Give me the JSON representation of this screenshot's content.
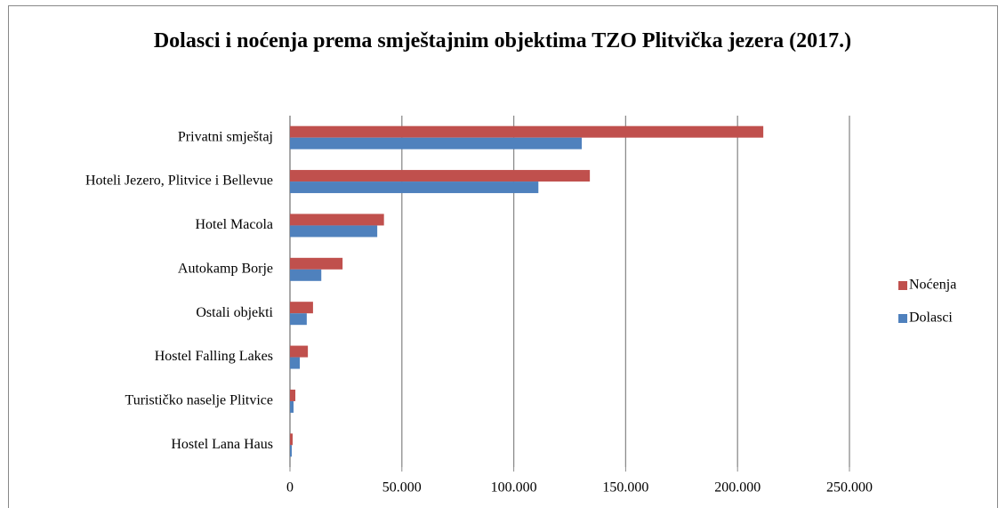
{
  "chart_data": {
    "type": "bar",
    "orientation": "horizontal",
    "title": "Dolasci i noćenja prema smještajnim objektima TZO Plitvička jezera (2017.)",
    "categories": [
      "Privatni smještaj",
      "Hoteli Jezero, Plitvice i Bellevue",
      "Hotel Macola",
      "Autokamp Borje",
      "Ostali objekti",
      "Hostel Falling Lakes",
      "Turističko naselje Plitvice",
      "Hostel Lana Haus"
    ],
    "series": [
      {
        "name": "Noćenja",
        "color": "#c0504d",
        "values": [
          211500,
          134000,
          42000,
          23500,
          10300,
          8000,
          2400,
          1200
        ]
      },
      {
        "name": "Dolasci",
        "color": "#4f81bd",
        "values": [
          130400,
          111000,
          39000,
          14000,
          7500,
          4400,
          1600,
          800
        ]
      }
    ],
    "xlim": [
      0,
      250000
    ],
    "xticks": [
      0,
      {
        "value": 50000,
        "label": "50.000"
      },
      {
        "value": 100000,
        "label": "100.000"
      },
      {
        "value": 150000,
        "label": "150.000"
      },
      {
        "value": 200000,
        "label": "200.000"
      },
      {
        "value": 250000,
        "label": "250.000"
      }
    ],
    "grid": true,
    "legend": "right"
  }
}
